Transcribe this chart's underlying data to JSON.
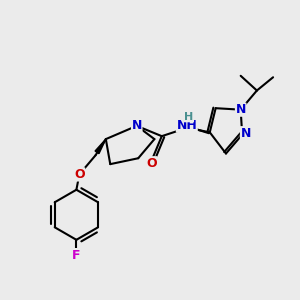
{
  "bg_color": "#ebebeb",
  "bond_color": "#000000",
  "bond_width": 1.5,
  "atom_colors": {
    "N": "#0000cc",
    "O": "#cc0000",
    "F": "#cc00cc",
    "H": "#4a9090",
    "C": "#000000"
  },
  "font_size_atom": 9,
  "font_size_small": 8
}
